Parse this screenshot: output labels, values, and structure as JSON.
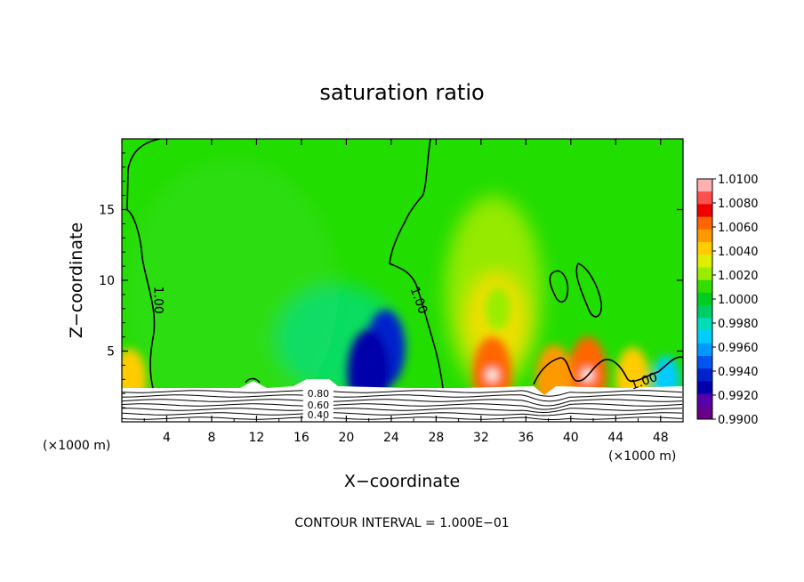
{
  "chart_data": {
    "type": "heatmap",
    "title": "saturation ratio",
    "xlabel": "X−coordinate",
    "ylabel": "Z−coordinate",
    "x_unit_left": "(×1000 m)",
    "x_unit_right": "(×1000 m)",
    "footer": "CONTOUR INTERVAL = 1.000E−01",
    "xlim": [
      0,
      50
    ],
    "ylim": [
      0,
      20
    ],
    "x_ticks": [
      4,
      8,
      12,
      16,
      20,
      24,
      28,
      32,
      36,
      40,
      44,
      48
    ],
    "y_ticks": [
      5,
      10,
      15
    ],
    "colorbar": {
      "min": 0.99,
      "max": 1.01,
      "labels": [
        "1.0100",
        "1.0080",
        "1.0060",
        "1.0040",
        "1.0020",
        "1.0000",
        "0.9980",
        "0.9960",
        "0.9940",
        "0.9920",
        "0.9900"
      ],
      "colors": [
        "#ffb0b0",
        "#ff5050",
        "#ee0000",
        "#ff6600",
        "#ff9900",
        "#ffcc00",
        "#ddee00",
        "#99ee00",
        "#33dd00",
        "#00cc22",
        "#00cc66",
        "#00ddbb",
        "#00ccff",
        "#0099ff",
        "#0055ee",
        "#0022cc",
        "#0000aa",
        "#5500aa",
        "#660088"
      ]
    },
    "contour_labels": [
      {
        "text": "1.00",
        "x": 3.3,
        "y": 8.6
      },
      {
        "text": "1.00",
        "x": 26.5,
        "y": 8.6
      },
      {
        "text": "1.00",
        "x": 46.5,
        "y": 2.9
      },
      {
        "text": "0.80",
        "x": 17.5,
        "y": 2.0
      },
      {
        "text": "0.60",
        "x": 17.5,
        "y": 1.2
      },
      {
        "text": "0.40",
        "x": 17.5,
        "y": 0.5
      }
    ],
    "anomalies": [
      {
        "x": 23.5,
        "z": 5.2,
        "value": 0.9935
      },
      {
        "x": 22.0,
        "z": 3.5,
        "value": 0.9925
      },
      {
        "x": 33.0,
        "z": 3.3,
        "value": 1.0065
      },
      {
        "x": 33.5,
        "z": 8.0,
        "value": 1.0025
      },
      {
        "x": 41.5,
        "z": 3.3,
        "value": 1.0065
      },
      {
        "x": 38.5,
        "z": 2.9,
        "value": 1.006
      },
      {
        "x": 45.5,
        "z": 3.0,
        "value": 1.005
      },
      {
        "x": 0.7,
        "z": 2.9,
        "value": 1.005
      },
      {
        "x": 48.5,
        "z": 3.0,
        "value": 0.997
      }
    ]
  }
}
